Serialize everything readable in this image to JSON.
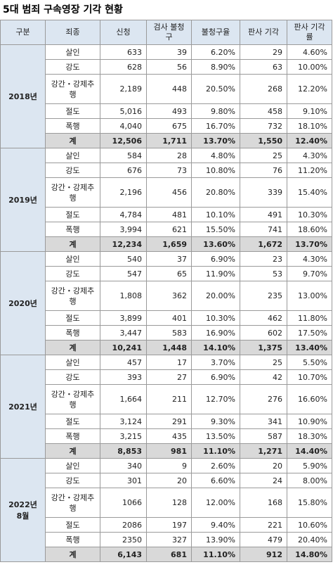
{
  "title": "5대 범죄 구속영장 기각 현황",
  "table": {
    "headers": [
      "구분",
      "죄종",
      "신청",
      "검사 불청구",
      "불청구율",
      "판사 기각",
      "판사 기각률"
    ],
    "groups": [
      {
        "label": "2018년",
        "rows": [
          [
            "살인",
            "633",
            "39",
            "6.20%",
            "29",
            "4.60%"
          ],
          [
            "강도",
            "628",
            "56",
            "8.90%",
            "63",
            "10.00%"
          ],
          [
            "강간・강제추행",
            "2,189",
            "448",
            "20.50%",
            "268",
            "12.20%"
          ],
          [
            "절도",
            "5,016",
            "493",
            "9.80%",
            "458",
            "9.10%"
          ],
          [
            "폭행",
            "4,040",
            "675",
            "16.70%",
            "732",
            "18.10%"
          ],
          [
            "계",
            "12,506",
            "1,711",
            "13.70%",
            "1,550",
            "12.40%"
          ]
        ]
      },
      {
        "label": "2019년",
        "rows": [
          [
            "살인",
            "584",
            "28",
            "4.80%",
            "25",
            "4.30%"
          ],
          [
            "강도",
            "676",
            "73",
            "10.80%",
            "76",
            "11.20%"
          ],
          [
            "강간・강제추행",
            "2,196",
            "456",
            "20.80%",
            "339",
            "15.40%"
          ],
          [
            "절도",
            "4,784",
            "481",
            "10.10%",
            "491",
            "10.30%"
          ],
          [
            "폭행",
            "3,994",
            "621",
            "15.50%",
            "741",
            "18.60%"
          ],
          [
            "계",
            "12,234",
            "1,659",
            "13.60%",
            "1,672",
            "13.70%"
          ]
        ]
      },
      {
        "label": "2020년",
        "rows": [
          [
            "살인",
            "540",
            "37",
            "6.90%",
            "23",
            "4.30%"
          ],
          [
            "강도",
            "547",
            "65",
            "11.90%",
            "53",
            "9.70%"
          ],
          [
            "강간・강제추행",
            "1,808",
            "362",
            "20.00%",
            "235",
            "13.00%"
          ],
          [
            "절도",
            "3,899",
            "401",
            "10.30%",
            "462",
            "11.80%"
          ],
          [
            "폭행",
            "3,447",
            "583",
            "16.90%",
            "602",
            "17.50%"
          ],
          [
            "계",
            "10,241",
            "1,448",
            "14.10%",
            "1,375",
            "13.40%"
          ]
        ]
      },
      {
        "label": "2021년",
        "rows": [
          [
            "살인",
            "457",
            "17",
            "3.70%",
            "25",
            "5.50%"
          ],
          [
            "강도",
            "393",
            "27",
            "6.90%",
            "42",
            "10.70%"
          ],
          [
            "강간・강제추행",
            "1,664",
            "211",
            "12.70%",
            "276",
            "16.60%"
          ],
          [
            "절도",
            "3,124",
            "291",
            "9.30%",
            "341",
            "10.90%"
          ],
          [
            "폭행",
            "3,215",
            "435",
            "13.50%",
            "587",
            "18.30%"
          ],
          [
            "계",
            "8,853",
            "981",
            "11.10%",
            "1,271",
            "14.40%"
          ]
        ]
      },
      {
        "label": "2022년\n8월",
        "rows": [
          [
            "살인",
            "340",
            "9",
            "2.60%",
            "20",
            "5.90%"
          ],
          [
            "강도",
            "301",
            "20",
            "6.60%",
            "24",
            "8.00%"
          ],
          [
            "강간・강제추행",
            "1066",
            "128",
            "12.00%",
            "168",
            "15.80%"
          ],
          [
            "절도",
            "2086",
            "197",
            "9.40%",
            "221",
            "10.60%"
          ],
          [
            "폭행",
            "2350",
            "327",
            "13.90%",
            "479",
            "20.40%"
          ],
          [
            "계",
            "6,143",
            "681",
            "11.10%",
            "912",
            "14.80%"
          ]
        ]
      }
    ]
  }
}
